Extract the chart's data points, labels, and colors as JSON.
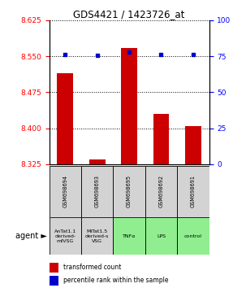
{
  "title": "GDS4421 / 1423726_at",
  "samples": [
    "GSM698694",
    "GSM698693",
    "GSM698695",
    "GSM698692",
    "GSM698691"
  ],
  "agent_labels": [
    "AnTat1.1\nderived-\nmfVSG",
    "MiTat1.5\nderived-s\nVSG",
    "TNFα",
    "LPS",
    "control"
  ],
  "agent_bg_colors": [
    "#d3d3d3",
    "#d3d3d3",
    "#90ee90",
    "#90ee90",
    "#90ee90"
  ],
  "red_values": [
    8.515,
    8.335,
    8.567,
    8.43,
    8.405
  ],
  "blue_values": [
    8.554,
    8.551,
    8.558,
    8.553,
    8.554
  ],
  "y_min": 8.325,
  "y_max": 8.625,
  "y_ticks_left": [
    8.325,
    8.4,
    8.475,
    8.55,
    8.625
  ],
  "y_ticks_right": [
    0,
    25,
    50,
    75,
    100
  ],
  "bar_color": "#cc0000",
  "dot_color": "#0000cc",
  "legend_red": "transformed count",
  "legend_blue": "percentile rank within the sample",
  "agent_text": "agent",
  "bar_width": 0.5
}
